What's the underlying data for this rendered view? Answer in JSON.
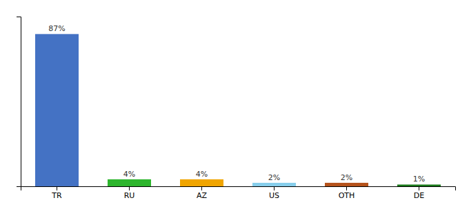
{
  "chart_data": {
    "type": "bar",
    "categories": [
      "TR",
      "RU",
      "AZ",
      "US",
      "OTH",
      "DE"
    ],
    "values": [
      87,
      4,
      4,
      2,
      2,
      1
    ],
    "value_labels": [
      "87%",
      "4%",
      "4%",
      "2%",
      "2%",
      "1%"
    ],
    "colors": [
      "#4472c4",
      "#2db52d",
      "#f0a500",
      "#87ceeb",
      "#b5521b",
      "#1a7a1a"
    ],
    "ylim": [
      0,
      97
    ],
    "yticks": [],
    "tick_labels": "x",
    "data_labels": true
  }
}
